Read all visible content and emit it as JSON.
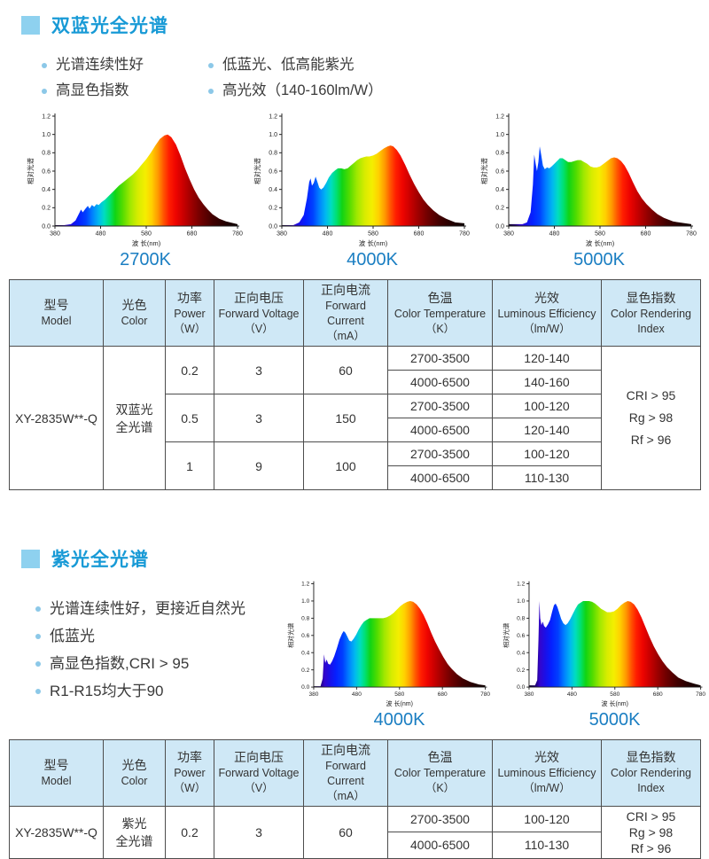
{
  "colors": {
    "accent_title": "#189ad6",
    "marker_square": "#8ed1ef",
    "bullet_dot": "#8cc8e8",
    "chart_label_blue": "#1a7ec2",
    "table_header_bg": "#cfe8f6",
    "table_border": "#4d4d4d"
  },
  "section1": {
    "title": "双蓝光全光谱",
    "features_col1": [
      "光谱连续性好",
      "高显色指数"
    ],
    "features_col2": [
      "低蓝光、低高能紫光",
      "高光效（140-160lm/W）"
    ]
  },
  "section2": {
    "title": "紫光全光谱",
    "features": [
      "光谱连续性好，更接近自然光",
      "低蓝光",
      "高显色指数,CRI > 95",
      "R1-R15均大于90"
    ]
  },
  "table_headers": [
    {
      "zh": "型号",
      "en": "Model"
    },
    {
      "zh": "光色",
      "en": "Color"
    },
    {
      "zh": "功率",
      "en": "Power",
      "unit": "（W）"
    },
    {
      "zh": "正向电压",
      "en": "Forward Voltage",
      "unit": "（V）"
    },
    {
      "zh": "正向电流",
      "en": "Forward Current",
      "unit": "（mA）"
    },
    {
      "zh": "色温",
      "en": "Color Temperature",
      "unit": "（K）"
    },
    {
      "zh": "光效",
      "en": "Luminous Efficiency",
      "unit": "（lm/W）"
    },
    {
      "zh": "显色指数",
      "en": "Color Rendering",
      "unit": "Index"
    }
  ],
  "table1": {
    "model": "XY-2835W**-Q",
    "color_line1": "双蓝光",
    "color_line2": "全光谱",
    "groups": [
      {
        "power": "0.2",
        "voltage": "3",
        "current": "60",
        "rows": [
          {
            "ct": "2700-3500",
            "eff": "120-140"
          },
          {
            "ct": "4000-6500",
            "eff": "140-160"
          }
        ]
      },
      {
        "power": "0.5",
        "voltage": "3",
        "current": "150",
        "rows": [
          {
            "ct": "2700-3500",
            "eff": "100-120"
          },
          {
            "ct": "4000-6500",
            "eff": "120-140"
          }
        ]
      },
      {
        "power": "1",
        "voltage": "9",
        "current": "100",
        "rows": [
          {
            "ct": "2700-3500",
            "eff": "100-120"
          },
          {
            "ct": "4000-6500",
            "eff": "110-130"
          }
        ]
      }
    ],
    "cri": [
      "CRI > 95",
      "Rg > 98",
      "Rf > 96"
    ]
  },
  "table2": {
    "model": "XY-2835W**-Q",
    "color_line1": "紫光",
    "color_line2": "全光谱",
    "power": "0.2",
    "voltage": "3",
    "current": "60",
    "rows": [
      {
        "ct": "2700-3500",
        "eff": "100-120"
      },
      {
        "ct": "4000-6500",
        "eff": "110-130"
      }
    ],
    "cri": [
      "CRI > 95",
      "Rg > 98",
      "Rf > 96"
    ]
  },
  "spectrum_gradient": [
    {
      "nm": 380,
      "color": "#0d0024"
    },
    {
      "nm": 395,
      "color": "#1e0070"
    },
    {
      "nm": 405,
      "color": "#3305cc"
    },
    {
      "nm": 418,
      "color": "#1a10e8"
    },
    {
      "nm": 432,
      "color": "#0520ff"
    },
    {
      "nm": 448,
      "color": "#0040ff"
    },
    {
      "nm": 462,
      "color": "#0080ff"
    },
    {
      "nm": 476,
      "color": "#00b8f0"
    },
    {
      "nm": 488,
      "color": "#00ddc0"
    },
    {
      "nm": 500,
      "color": "#00e070"
    },
    {
      "nm": 512,
      "color": "#10d414"
    },
    {
      "nm": 528,
      "color": "#52dc00"
    },
    {
      "nm": 545,
      "color": "#a0e800"
    },
    {
      "nm": 562,
      "color": "#d8ec00"
    },
    {
      "nm": 578,
      "color": "#f4ee00"
    },
    {
      "nm": 592,
      "color": "#ffd000"
    },
    {
      "nm": 606,
      "color": "#ff9800"
    },
    {
      "nm": 618,
      "color": "#ff5500"
    },
    {
      "nm": 630,
      "color": "#ff1e00"
    },
    {
      "nm": 645,
      "color": "#ee0400"
    },
    {
      "nm": 660,
      "color": "#cc0000"
    },
    {
      "nm": 678,
      "color": "#a00000"
    },
    {
      "nm": 700,
      "color": "#6e0000"
    },
    {
      "nm": 725,
      "color": "#420000"
    },
    {
      "nm": 755,
      "color": "#200000"
    },
    {
      "nm": 780,
      "color": "#0d0000"
    }
  ],
  "chart_data": [
    {
      "type": "area",
      "title": "2700K",
      "section": 1,
      "xlabel": "波 长(nm)",
      "ylabel": "相对光谱",
      "xlim": [
        380,
        780
      ],
      "ylim": [
        0,
        1.2
      ],
      "xticks": [
        380,
        480,
        580,
        680,
        780
      ],
      "yticks": [
        "0.0",
        "0.2",
        "0.4",
        "0.6",
        "0.8",
        "1.0",
        "1.2"
      ],
      "x": [
        380,
        400,
        415,
        425,
        432,
        437,
        441,
        447,
        452,
        456,
        461,
        466,
        471,
        476,
        482,
        490,
        500,
        510,
        520,
        530,
        540,
        550,
        560,
        570,
        580,
        590,
        600,
        610,
        620,
        627,
        635,
        645,
        655,
        665,
        675,
        685,
        695,
        705,
        715,
        725,
        740,
        755,
        780
      ],
      "values": [
        0.01,
        0.01,
        0.02,
        0.06,
        0.13,
        0.18,
        0.15,
        0.19,
        0.22,
        0.19,
        0.23,
        0.21,
        0.24,
        0.23,
        0.26,
        0.29,
        0.34,
        0.39,
        0.44,
        0.48,
        0.52,
        0.56,
        0.61,
        0.67,
        0.73,
        0.8,
        0.88,
        0.95,
        0.99,
        1.0,
        0.97,
        0.89,
        0.77,
        0.63,
        0.51,
        0.4,
        0.31,
        0.24,
        0.18,
        0.13,
        0.08,
        0.05,
        0.02
      ]
    },
    {
      "type": "area",
      "title": "4000K",
      "section": 1,
      "xlabel": "波 长(nm)",
      "ylabel": "相对光谱",
      "xlim": [
        380,
        780
      ],
      "ylim": [
        0,
        1.2
      ],
      "xticks": [
        380,
        480,
        580,
        680,
        780
      ],
      "yticks": [
        "0.0",
        "0.2",
        "0.4",
        "0.6",
        "0.8",
        "1.0",
        "1.2"
      ],
      "x": [
        380,
        405,
        418,
        428,
        435,
        440,
        443,
        446,
        450,
        454,
        458,
        462,
        466,
        471,
        477,
        483,
        490,
        497,
        503,
        510,
        517,
        524,
        531,
        538,
        545,
        552,
        558,
        565,
        572,
        580,
        588,
        596,
        604,
        612,
        618,
        624,
        632,
        640,
        650,
        660,
        670,
        680,
        690,
        700,
        712,
        725,
        740,
        760,
        780
      ],
      "values": [
        0.01,
        0.01,
        0.04,
        0.12,
        0.3,
        0.48,
        0.52,
        0.44,
        0.47,
        0.54,
        0.48,
        0.42,
        0.4,
        0.42,
        0.47,
        0.53,
        0.58,
        0.61,
        0.63,
        0.63,
        0.62,
        0.63,
        0.66,
        0.69,
        0.72,
        0.74,
        0.75,
        0.76,
        0.76,
        0.77,
        0.79,
        0.82,
        0.85,
        0.87,
        0.88,
        0.87,
        0.83,
        0.77,
        0.67,
        0.56,
        0.46,
        0.37,
        0.29,
        0.23,
        0.17,
        0.12,
        0.08,
        0.04,
        0.03
      ]
    },
    {
      "type": "area",
      "title": "5000K",
      "section": 1,
      "xlabel": "波 长(nm)",
      "ylabel": "相对光谱",
      "xlim": [
        380,
        780
      ],
      "ylim": [
        0,
        1.2
      ],
      "xticks": [
        380,
        480,
        580,
        680,
        780
      ],
      "yticks": [
        "0.0",
        "0.2",
        "0.4",
        "0.6",
        "0.8",
        "1.0",
        "1.2"
      ],
      "x": [
        380,
        410,
        420,
        428,
        433,
        436,
        439,
        442,
        445,
        448,
        451,
        455,
        459,
        464,
        469,
        474,
        480,
        486,
        492,
        498,
        504,
        510,
        517,
        524,
        531,
        538,
        545,
        552,
        559,
        566,
        573,
        580,
        588,
        596,
        604,
        611,
        618,
        626,
        634,
        643,
        652,
        662,
        672,
        682,
        694,
        706,
        720,
        740,
        780
      ],
      "values": [
        0.02,
        0.02,
        0.04,
        0.15,
        0.45,
        0.78,
        0.68,
        0.6,
        0.7,
        0.87,
        0.78,
        0.66,
        0.62,
        0.64,
        0.63,
        0.65,
        0.68,
        0.71,
        0.74,
        0.74,
        0.72,
        0.7,
        0.7,
        0.71,
        0.72,
        0.72,
        0.7,
        0.68,
        0.65,
        0.64,
        0.64,
        0.65,
        0.68,
        0.71,
        0.74,
        0.75,
        0.74,
        0.71,
        0.66,
        0.58,
        0.48,
        0.38,
        0.3,
        0.24,
        0.18,
        0.13,
        0.09,
        0.05,
        0.02
      ]
    },
    {
      "type": "area",
      "title": "4000K",
      "section": 2,
      "xlabel": "波 长(nm)",
      "ylabel": "相对光谱",
      "xlim": [
        380,
        780
      ],
      "ylim": [
        0,
        1.2
      ],
      "xticks": [
        380,
        480,
        580,
        680,
        780
      ],
      "yticks": [
        "0.0",
        "0.2",
        "0.4",
        "0.6",
        "0.8",
        "1.0",
        "1.2"
      ],
      "x": [
        380,
        396,
        401,
        404,
        407,
        410,
        414,
        418,
        423,
        428,
        434,
        440,
        446,
        450,
        454,
        458,
        463,
        468,
        473,
        479,
        485,
        491,
        497,
        503,
        510,
        518,
        526,
        534,
        542,
        550,
        558,
        566,
        574,
        582,
        590,
        598,
        605,
        612,
        620,
        628,
        636,
        645,
        654,
        663,
        672,
        682,
        692,
        702,
        714,
        728,
        745,
        765,
        780
      ],
      "values": [
        0.01,
        0.01,
        0.1,
        0.38,
        0.28,
        0.32,
        0.27,
        0.26,
        0.3,
        0.36,
        0.45,
        0.55,
        0.62,
        0.65,
        0.63,
        0.59,
        0.54,
        0.53,
        0.56,
        0.61,
        0.67,
        0.72,
        0.76,
        0.78,
        0.8,
        0.8,
        0.8,
        0.8,
        0.8,
        0.81,
        0.83,
        0.86,
        0.9,
        0.94,
        0.97,
        0.99,
        1.0,
        0.99,
        0.96,
        0.91,
        0.84,
        0.74,
        0.63,
        0.53,
        0.44,
        0.35,
        0.27,
        0.21,
        0.15,
        0.1,
        0.06,
        0.03,
        0.02
      ]
    },
    {
      "type": "area",
      "title": "5000K",
      "section": 2,
      "xlabel": "波 长(nm)",
      "ylabel": "相对光谱",
      "xlim": [
        380,
        780
      ],
      "ylim": [
        0,
        1.2
      ],
      "xticks": [
        380,
        480,
        580,
        680,
        780
      ],
      "yticks": [
        "0.0",
        "0.2",
        "0.4",
        "0.6",
        "0.8",
        "1.0",
        "1.2"
      ],
      "x": [
        380,
        394,
        399,
        402,
        404,
        406,
        409,
        412,
        415,
        419,
        424,
        429,
        434,
        438,
        442,
        446,
        450,
        455,
        460,
        465,
        470,
        476,
        482,
        488,
        494,
        500,
        506,
        513,
        520,
        527,
        534,
        541,
        548,
        555,
        562,
        570,
        578,
        586,
        594,
        602,
        610,
        617,
        625,
        633,
        642,
        651,
        661,
        671,
        681,
        691,
        702,
        714,
        728,
        745,
        765,
        780
      ],
      "values": [
        0.02,
        0.02,
        0.08,
        0.55,
        1.0,
        0.8,
        0.72,
        0.76,
        0.71,
        0.69,
        0.73,
        0.78,
        0.88,
        0.95,
        0.97,
        0.93,
        0.87,
        0.79,
        0.74,
        0.72,
        0.74,
        0.79,
        0.85,
        0.91,
        0.96,
        0.98,
        1.0,
        1.0,
        1.0,
        0.99,
        0.97,
        0.94,
        0.91,
        0.89,
        0.87,
        0.87,
        0.88,
        0.91,
        0.95,
        0.98,
        1.0,
        0.99,
        0.96,
        0.9,
        0.81,
        0.7,
        0.58,
        0.47,
        0.38,
        0.3,
        0.23,
        0.17,
        0.11,
        0.07,
        0.04,
        0.02
      ]
    }
  ]
}
